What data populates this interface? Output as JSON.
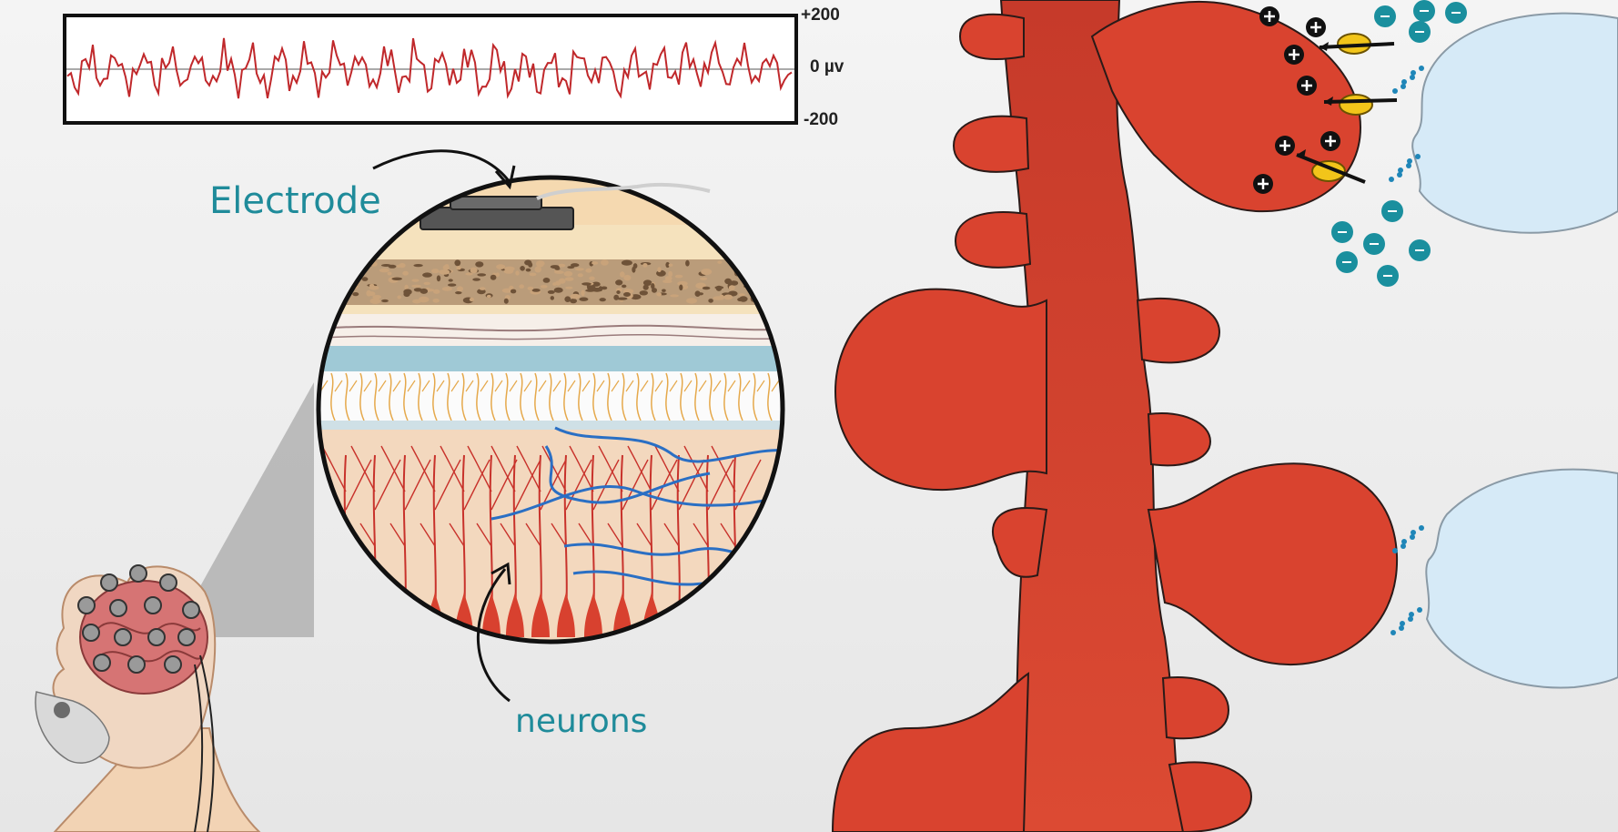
{
  "eeg_trace": {
    "axis_top": "+200",
    "axis_mid": "0 µv",
    "axis_bottom": "-200"
  },
  "labels": {
    "electrode": "Electrode",
    "neurons": "neurons"
  },
  "colors": {
    "neuron_red": "#d9432f",
    "trace_red": "#c0282b",
    "ion_teal": "#1a8f9e",
    "cell_blue": "#d6eaf7",
    "axon_blue": "#2a6fc4"
  },
  "icons": {
    "positive_ion": "plus-ion-icon",
    "negative_ion": "minus-ion-icon",
    "channel": "ion-channel-icon"
  }
}
